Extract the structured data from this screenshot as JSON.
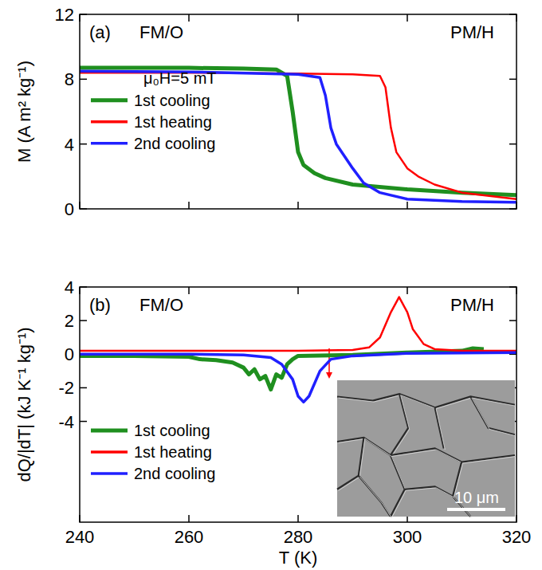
{
  "chart_data": [
    {
      "type": "line",
      "panel_label": "(a)",
      "y_label": "M (A m² kg⁻¹)",
      "annotations": [
        "FM/O",
        "PM/H",
        "μ₀H=5 mT"
      ],
      "xlim": [
        240,
        320
      ],
      "xticks": [
        240,
        260,
        280,
        300,
        320
      ],
      "ylim": [
        0,
        12
      ],
      "yticks": [
        0,
        4,
        8,
        12
      ],
      "tick_labels": "y",
      "legend": "left",
      "series": [
        {
          "name": "1st cooling",
          "color": "#1f8f1f",
          "x": [
            240,
            250,
            260,
            270,
            276,
            278,
            279,
            280,
            281,
            283,
            285,
            290,
            300,
            310,
            320
          ],
          "values": [
            8.7,
            8.7,
            8.7,
            8.65,
            8.6,
            8.2,
            6.0,
            3.5,
            2.7,
            2.2,
            1.9,
            1.5,
            1.2,
            1.0,
            0.85
          ]
        },
        {
          "name": "1st heating",
          "color": "#ff0000",
          "x": [
            240,
            260,
            280,
            290,
            295,
            296,
            297,
            298,
            300,
            302,
            305,
            310,
            315,
            320
          ],
          "values": [
            8.4,
            8.4,
            8.35,
            8.3,
            8.2,
            7.5,
            5.0,
            3.5,
            2.5,
            2.0,
            1.5,
            1.0,
            0.8,
            0.6
          ]
        },
        {
          "name": "2nd cooling",
          "color": "#2020ff",
          "x": [
            240,
            260,
            280,
            284,
            285,
            286,
            287,
            290,
            292,
            295,
            300,
            310,
            320
          ],
          "values": [
            8.5,
            8.45,
            8.3,
            8.1,
            7.0,
            5.0,
            4.0,
            2.5,
            1.6,
            1.0,
            0.6,
            0.45,
            0.4
          ]
        }
      ]
    },
    {
      "type": "line",
      "panel_label": "(b)",
      "x_label": "T (K)",
      "y_label": "dQ/|dT| (kJ K⁻¹ kg⁻¹)",
      "annotations": [
        "FM/O",
        "PM/H"
      ],
      "xlim": [
        240,
        320
      ],
      "xticks": [
        240,
        260,
        280,
        300,
        320
      ],
      "ylim": [
        -10,
        4
      ],
      "yticks": [
        -4,
        -2,
        0,
        2,
        4
      ],
      "legend": "lower left",
      "inset": {
        "scale_label": "10 μm"
      },
      "series": [
        {
          "name": "1st cooling",
          "color": "#1f8f1f",
          "x": [
            240,
            250,
            260,
            262,
            265,
            268,
            270,
            271,
            272,
            273,
            274,
            275,
            276,
            277,
            278,
            279,
            280,
            290,
            300,
            310,
            312,
            314
          ],
          "values": [
            -0.1,
            -0.1,
            -0.15,
            -0.3,
            -0.35,
            -0.5,
            -0.8,
            -1.2,
            -0.9,
            -1.5,
            -1.3,
            -2.1,
            -1.2,
            -1.4,
            -0.6,
            -0.3,
            -0.1,
            -0.05,
            0.1,
            0.2,
            0.35,
            0.3
          ]
        },
        {
          "name": "1st heating",
          "color": "#ff0000",
          "x": [
            240,
            260,
            280,
            290,
            293,
            295,
            297,
            298.5,
            300,
            301,
            303,
            305,
            310,
            320
          ],
          "values": [
            0.2,
            0.2,
            0.2,
            0.25,
            0.4,
            1.0,
            2.5,
            3.4,
            2.5,
            1.5,
            0.6,
            0.3,
            0.2,
            0.2
          ]
        },
        {
          "name": "2nd cooling",
          "color": "#2020ff",
          "x": [
            240,
            260,
            270,
            275,
            277,
            279,
            280,
            281,
            282,
            284,
            286,
            290,
            300,
            320
          ],
          "values": [
            0,
            0,
            -0.05,
            -0.2,
            -0.6,
            -1.5,
            -2.5,
            -2.85,
            -2.5,
            -1.0,
            -0.3,
            -0.1,
            0.05,
            0.1
          ]
        }
      ]
    }
  ]
}
